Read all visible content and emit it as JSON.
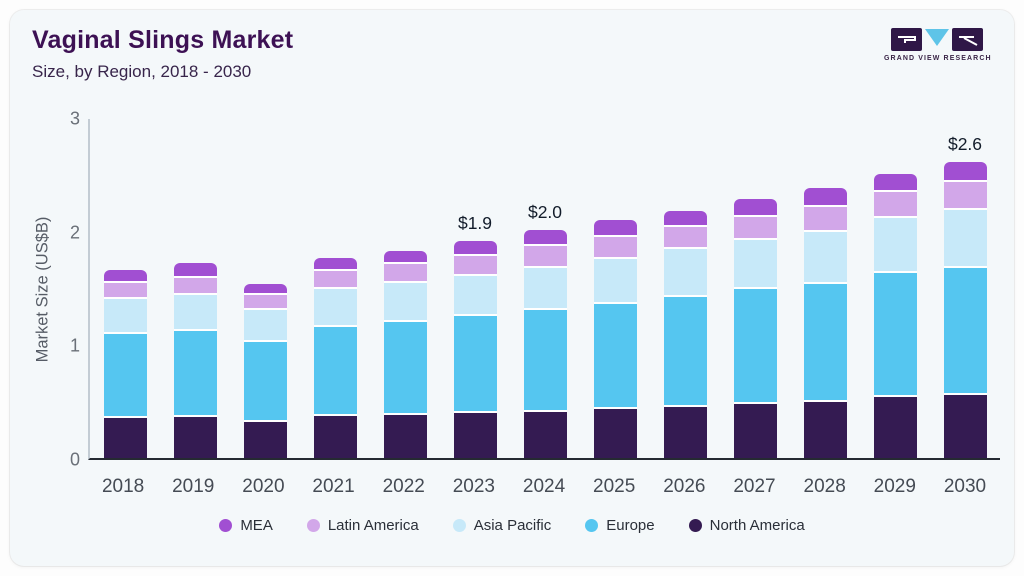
{
  "header": {
    "title": "Vaginal Slings Market",
    "subtitle": "Size, by Region, 2018 - 2030"
  },
  "logo": {
    "name": "grand-view-research-logo",
    "text": "GRAND VIEW RESEARCH",
    "block_color": "#2f1747",
    "triangle_color": "#5ec4e8"
  },
  "chart_data": {
    "type": "bar",
    "stacked": true,
    "title": "Vaginal Slings Market Size, by Region, 2018 - 2030",
    "xlabel": "",
    "ylabel": "Market Size (US$B)",
    "ylim": [
      0,
      3
    ],
    "yticks": [
      0,
      1,
      2,
      3
    ],
    "grid": false,
    "legend_position": "bottom",
    "categories": [
      "2018",
      "2019",
      "2020",
      "2021",
      "2022",
      "2023",
      "2024",
      "2025",
      "2026",
      "2027",
      "2028",
      "2029",
      "2030"
    ],
    "series": [
      {
        "name": "North America",
        "color": "#341b52",
        "values": [
          0.37,
          0.38,
          0.33,
          0.39,
          0.4,
          0.41,
          0.42,
          0.45,
          0.47,
          0.49,
          0.51,
          0.55,
          0.57
        ]
      },
      {
        "name": "Europe",
        "color": "#55c6f0",
        "values": [
          0.74,
          0.76,
          0.7,
          0.78,
          0.82,
          0.85,
          0.9,
          0.92,
          0.97,
          1.01,
          1.04,
          1.09,
          1.12
        ]
      },
      {
        "name": "Asia Pacific",
        "color": "#c7e9f9",
        "values": [
          0.31,
          0.32,
          0.28,
          0.33,
          0.34,
          0.35,
          0.37,
          0.4,
          0.42,
          0.43,
          0.46,
          0.48,
          0.51
        ]
      },
      {
        "name": "Latin America",
        "color": "#d2a7e9",
        "values": [
          0.14,
          0.15,
          0.13,
          0.16,
          0.17,
          0.18,
          0.19,
          0.19,
          0.19,
          0.2,
          0.22,
          0.23,
          0.25
        ]
      },
      {
        "name": "MEA",
        "color": "#a14fd2",
        "values": [
          0.1,
          0.11,
          0.08,
          0.1,
          0.1,
          0.11,
          0.12,
          0.13,
          0.12,
          0.14,
          0.15,
          0.14,
          0.16
        ]
      }
    ],
    "totals": [
      1.66,
      1.72,
      1.52,
      1.76,
      1.83,
      1.9,
      2.0,
      2.09,
      2.17,
      2.27,
      2.38,
      2.49,
      2.61
    ],
    "bar_labels": [
      null,
      null,
      null,
      null,
      null,
      "$1.9",
      "$2.0",
      null,
      null,
      null,
      null,
      null,
      "$2.6"
    ],
    "legend_order": [
      "MEA",
      "Latin America",
      "Asia Pacific",
      "Europe",
      "North America"
    ]
  }
}
